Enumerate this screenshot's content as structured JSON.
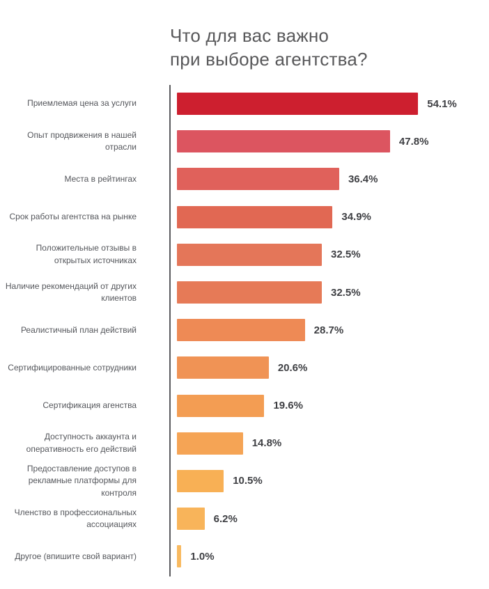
{
  "title": {
    "line1": "Что для вас важно",
    "line2": "при выборе агентства?"
  },
  "chart_data": {
    "type": "bar",
    "orientation": "horizontal",
    "title": "Что для вас важно при выборе агентства?",
    "xlabel": "",
    "ylabel": "",
    "xlim": [
      0,
      60
    ],
    "grid": false,
    "legend": "none",
    "value_suffix": "%",
    "categories": [
      "Приемлемая цена за услуги",
      "Опыт продвижения в нашей отрасли",
      "Места в рейтингах",
      "Срок работы агентства на рынке",
      "Положительные отзывы в открытых источниках",
      "Наличие рекомендаций от других клиентов",
      "Реалистичный план действий",
      "Сертифицированные сотрудники",
      "Сертификация агенства",
      "Доступность аккаунта и оперативность его действий",
      "Предоставление доступов в рекламные платформы для контроля",
      "Членство в профессиональных ассоциациях",
      "Другое (впишите свой вариант)"
    ],
    "values": [
      54.1,
      47.8,
      36.4,
      34.9,
      32.5,
      32.5,
      28.7,
      20.6,
      19.6,
      14.8,
      10.5,
      6.2,
      1.0
    ],
    "value_labels": [
      "54.1%",
      "47.8%",
      "36.4%",
      "34.9%",
      "32.5%",
      "32.5%",
      "28.7%",
      "20.6%",
      "19.6%",
      "14.8%",
      "10.5%",
      "6.2%",
      "1.0%"
    ],
    "bar_colors": [
      "#cd1f2f",
      "#dc5560",
      "#e0615b",
      "#e16853",
      "#e47659",
      "#e67a57",
      "#ee8a55",
      "#f09355",
      "#f39d53",
      "#f5a455",
      "#f8b055",
      "#f8b45a",
      "#f9ba60"
    ],
    "axis_color": "#5a5b5e",
    "label_color": "#54565b",
    "value_color": "#3e3f43",
    "title_color": "#58585a"
  }
}
